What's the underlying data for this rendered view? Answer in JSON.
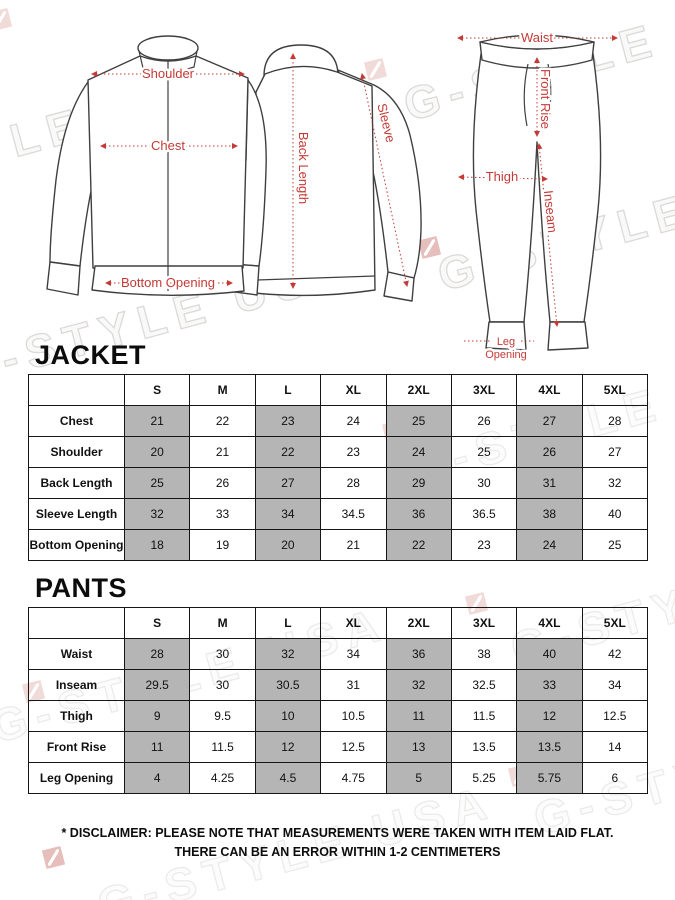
{
  "watermark": {
    "text": "G-STYLE USA",
    "outline_color": "#a8a39c",
    "logo_color": "#b23b32"
  },
  "diagram": {
    "label_color": "#c43a36",
    "jacket": {
      "shoulder": "Shoulder",
      "chest": "Chest",
      "bottom_opening": "Bottom Opening",
      "back_length": "Back Length",
      "sleeve": "Sleeve"
    },
    "pants": {
      "waist": "Waist",
      "front_rise": "Front Rise",
      "thigh": "Thigh",
      "inseam": "Inseam",
      "leg_opening_line1": "Leg",
      "leg_opening_line2": "Opening"
    }
  },
  "jacket_table": {
    "title": "JACKET",
    "columns": [
      "",
      "S",
      "M",
      "L",
      "XL",
      "2XL",
      "3XL",
      "4XL",
      "5XL"
    ],
    "shaded_value_columns": [
      0,
      2,
      4,
      6
    ],
    "shade_color": "#b5b5b5",
    "rows": [
      {
        "label": "Chest",
        "values": [
          "21",
          "22",
          "23",
          "24",
          "25",
          "26",
          "27",
          "28"
        ]
      },
      {
        "label": "Shoulder",
        "values": [
          "20",
          "21",
          "22",
          "23",
          "24",
          "25",
          "26",
          "27"
        ]
      },
      {
        "label": "Back Length",
        "values": [
          "25",
          "26",
          "27",
          "28",
          "29",
          "30",
          "31",
          "32"
        ]
      },
      {
        "label": "Sleeve Length",
        "values": [
          "32",
          "33",
          "34",
          "34.5",
          "36",
          "36.5",
          "38",
          "40"
        ]
      },
      {
        "label": "Bottom Opening",
        "values": [
          "18",
          "19",
          "20",
          "21",
          "22",
          "23",
          "24",
          "25"
        ]
      }
    ]
  },
  "pants_table": {
    "title": "PANTS",
    "columns": [
      "",
      "S",
      "M",
      "L",
      "XL",
      "2XL",
      "3XL",
      "4XL",
      "5XL"
    ],
    "shaded_value_columns": [
      0,
      2,
      4,
      6
    ],
    "shade_color": "#b5b5b5",
    "rows": [
      {
        "label": "Waist",
        "values": [
          "28",
          "30",
          "32",
          "34",
          "36",
          "38",
          "40",
          "42"
        ]
      },
      {
        "label": "Inseam",
        "values": [
          "29.5",
          "30",
          "30.5",
          "31",
          "32",
          "32.5",
          "33",
          "34"
        ]
      },
      {
        "label": "Thigh",
        "values": [
          "9",
          "9.5",
          "10",
          "10.5",
          "11",
          "11.5",
          "12",
          "12.5"
        ]
      },
      {
        "label": "Front Rise",
        "values": [
          "11",
          "11.5",
          "12",
          "12.5",
          "13",
          "13.5",
          "13.5",
          "14"
        ]
      },
      {
        "label": "Leg Opening",
        "values": [
          "4",
          "4.25",
          "4.5",
          "4.75",
          "5",
          "5.25",
          "5.75",
          "6"
        ]
      }
    ]
  },
  "disclaimer": {
    "line1": "* DISCLAIMER: PLEASE NOTE THAT MEASUREMENTS WERE TAKEN WITH ITEM LAID FLAT.",
    "line2": "THERE CAN BE AN ERROR WITHIN 1-2 CENTIMETERS"
  }
}
